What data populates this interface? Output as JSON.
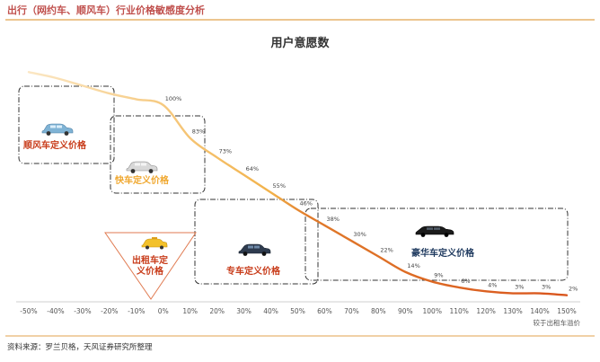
{
  "page": {
    "header_title": "出行（网约车、顺风车）行业价格敏感度分析",
    "source": "资料来源：罗兰贝格，天风证券研究所整理"
  },
  "colors": {
    "accent": "#c0504d",
    "curve_light": "#f2b24a",
    "curve_dark": "#d9551d",
    "zone_red": "#c83c1a",
    "zone_orange": "#f0a830",
    "zone_navy": "#1f3a5f"
  },
  "zones": [
    {
      "id": "shunfeng",
      "label": "顺风车定义价格",
      "color_key": "zone_red",
      "icon": "car-icon-light-blue"
    },
    {
      "id": "kuaiche",
      "label": "快车定义价格",
      "color_key": "zone_orange",
      "icon": "car-icon-silver"
    },
    {
      "id": "chuzuche",
      "label": "出租车定义价格",
      "color_key": "zone_red",
      "icon": "car-icon-taxi-yellow"
    },
    {
      "id": "zhuanche",
      "label": "专车定义价格",
      "color_key": "zone_red",
      "icon": "car-icon-dark-sedan"
    },
    {
      "id": "haohua",
      "label": "豪华车定义价格",
      "color_key": "zone_navy",
      "icon": "car-icon-black-luxury"
    }
  ],
  "chart_data": {
    "type": "line",
    "title": "用户意愿数",
    "xlabel": "较于出租车溢价",
    "ylabel": "",
    "categories": [
      "-50%",
      "-40%",
      "-30%",
      "-20%",
      "-10%",
      "0%",
      "10%",
      "20%",
      "30%",
      "40%",
      "50%",
      "60%",
      "70%",
      "80%",
      "90%",
      "100%",
      "110%",
      "120%",
      "130%",
      "140%",
      "150%"
    ],
    "x": [
      -50,
      -40,
      -30,
      -20,
      -10,
      0,
      10,
      20,
      30,
      40,
      50,
      60,
      70,
      80,
      90,
      100,
      110,
      120,
      130,
      140,
      150
    ],
    "xlim": [
      -55,
      155
    ],
    "ylim": [
      0,
      130
    ],
    "series": [
      {
        "x": [
          -50,
          -40,
          -30,
          -20,
          -10,
          0,
          10,
          20,
          30,
          40,
          50,
          60,
          70,
          80,
          90,
          100,
          110,
          120,
          130,
          140,
          150
        ],
        "values": [
          117,
          114,
          110,
          106,
          103,
          100,
          83,
          73,
          64,
          55,
          46,
          38,
          30,
          22,
          14,
          9,
          6,
          4,
          3,
          3,
          2
        ]
      }
    ],
    "data_labels": [
      {
        "x": 0,
        "y": 100,
        "text": "100%"
      },
      {
        "x": 10,
        "y": 83,
        "text": "83%"
      },
      {
        "x": 20,
        "y": 73,
        "text": "73%"
      },
      {
        "x": 30,
        "y": 64,
        "text": "64%"
      },
      {
        "x": 40,
        "y": 55,
        "text": "55%"
      },
      {
        "x": 50,
        "y": 46,
        "text": "46%"
      },
      {
        "x": 60,
        "y": 38,
        "text": "38%"
      },
      {
        "x": 70,
        "y": 30,
        "text": "30%"
      },
      {
        "x": 80,
        "y": 22,
        "text": "22%"
      },
      {
        "x": 90,
        "y": 14,
        "text": "14%"
      },
      {
        "x": 100,
        "y": 9,
        "text": "9%"
      },
      {
        "x": 110,
        "y": 6,
        "text": "6%"
      },
      {
        "x": 120,
        "y": 4,
        "text": "4%"
      },
      {
        "x": 130,
        "y": 3,
        "text": "3%"
      },
      {
        "x": 140,
        "y": 3,
        "text": "3%"
      },
      {
        "x": 150,
        "y": 2,
        "text": "2%"
      }
    ],
    "grid": false,
    "legend": "none"
  }
}
